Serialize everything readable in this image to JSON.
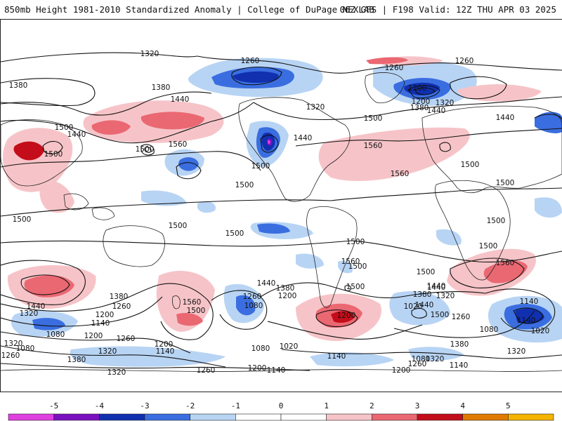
{
  "header": {
    "title_left": "850mb Height 1981-2010 Standardized Anomaly | College of DuPage NEXLAB",
    "title_right": "06Z GFS | F198 Valid: 12Z THU APR 03 2025"
  },
  "colors": {
    "neg5": "#e040e0",
    "neg4": "#7a10c0",
    "neg3": "#1030b0",
    "neg2": "#3a6ee0",
    "neg1": "#b8d4f4",
    "pos1": "#f6c4c8",
    "pos2": "#ea6872",
    "pos3": "#c40d1a",
    "pos4": "#e07a00",
    "pos5": "#f5b400",
    "contour": "#111111",
    "coast": "#222222"
  },
  "colorbar": {
    "ticks": [
      "-5",
      "-4",
      "-3",
      "-2",
      "-1",
      "0",
      "1",
      "2",
      "3",
      "4",
      "5"
    ]
  },
  "contour_labels": [
    "1320",
    "1260",
    "1260",
    "1260",
    "1380",
    "1380",
    "1440",
    "1500",
    "1440",
    "1500",
    "1500",
    "1560",
    "1500",
    "1320",
    "1440",
    "1440",
    "1440",
    "1500",
    "1560",
    "1560",
    "1500",
    "1500",
    "1500",
    "1500",
    "1500",
    "1500",
    "1500",
    "1500",
    "1500",
    "1500",
    "1560",
    "1500",
    "1440",
    "1440",
    "1380",
    "1320",
    "1200",
    "1260",
    "1140",
    "1080",
    "1200",
    "1080",
    "1320",
    "1260",
    "1380",
    "1200",
    "1140",
    "1320",
    "1260",
    "1140",
    "1080",
    "1200",
    "1560",
    "1500",
    "1440",
    "1380",
    "1260",
    "1200",
    "1080",
    "1020",
    "1200",
    "1260",
    "1320",
    "1380",
    "1440",
    "1500",
    "1560",
    "1140",
    "1080",
    "1020",
    "1260",
    "1320",
    "1380",
    "1440",
    "1500",
    "1140",
    "1020",
    "1200",
    "1080",
    "1320",
    "1140",
    "1320",
    "1260",
    "1200",
    "1380",
    "1320",
    "1200",
    "1140"
  ]
}
